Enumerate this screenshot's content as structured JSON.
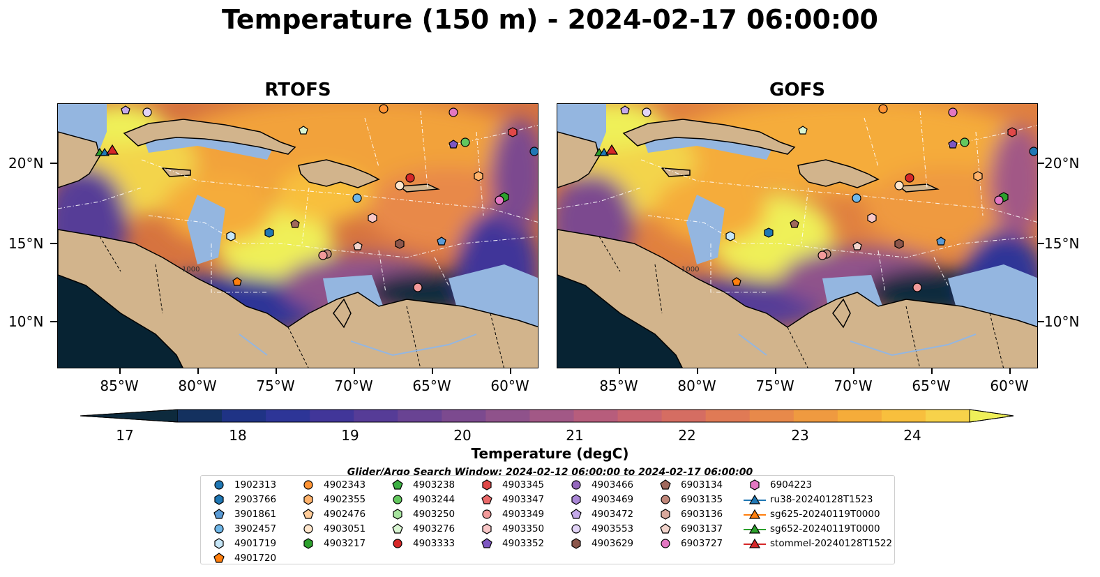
{
  "title": "Temperature (150 m) - 2024-02-17 06:00:00",
  "panels": [
    {
      "title": "RTOFS"
    },
    {
      "title": "GOFS"
    }
  ],
  "axes": {
    "lon_ticks": [
      "85°W",
      "80°W",
      "75°W",
      "70°W",
      "65°W",
      "60°W"
    ],
    "lat_ticks": [
      "20°N",
      "15°N",
      "10°N"
    ]
  },
  "contour_label": "1000",
  "colorbar": {
    "label": "Temperature (degC)",
    "ticks": [
      "17",
      "18",
      "19",
      "20",
      "21",
      "22",
      "23",
      "24"
    ],
    "colors": [
      "#0d2a3d",
      "#14315f",
      "#1f3385",
      "#2d3597",
      "#413699",
      "#563c97",
      "#694393",
      "#7c4a8f",
      "#8f528b",
      "#a25886",
      "#b75d7c",
      "#c86470",
      "#d56d62",
      "#e07a55",
      "#e8894a",
      "#ef9a40",
      "#f5ac3a",
      "#f8bf3d",
      "#f7d24a",
      "#eff059"
    ]
  },
  "search_window": "Glider/Argo Search Window: 2024-02-12 06:00:00 to 2024-02-17 06:00:00",
  "legend": {
    "columns": [
      [
        {
          "label": "1902313",
          "marker": "circle",
          "color": "#1f77b4"
        },
        {
          "label": "2903766",
          "marker": "hexagon",
          "color": "#1f77b4"
        },
        {
          "label": "3901861",
          "marker": "pentagon",
          "color": "#5b9bd5"
        },
        {
          "label": "3902457",
          "marker": "circle",
          "color": "#6fb7e9"
        },
        {
          "label": "4901719",
          "marker": "hexagon",
          "color": "#c6e6f7"
        },
        {
          "label": "4901720",
          "marker": "pentagon",
          "color": "#ff7f0e"
        }
      ],
      [
        {
          "label": "4902343",
          "marker": "circle",
          "color": "#ff9333"
        },
        {
          "label": "4902355",
          "marker": "hexagon",
          "color": "#ffb26b"
        },
        {
          "label": "4902476",
          "marker": "pentagon",
          "color": "#ffcc99"
        },
        {
          "label": "4903051",
          "marker": "circle",
          "color": "#ffe6cc"
        },
        {
          "label": "4903217",
          "marker": "hexagon",
          "color": "#2ca02c"
        }
      ],
      [
        {
          "label": "4903238",
          "marker": "pentagon",
          "color": "#3cb043"
        },
        {
          "label": "4903244",
          "marker": "circle",
          "color": "#63c75e"
        },
        {
          "label": "4903250",
          "marker": "hexagon",
          "color": "#a6e39e"
        },
        {
          "label": "4903276",
          "marker": "pentagon",
          "color": "#d9f5d2"
        },
        {
          "label": "4903333",
          "marker": "circle",
          "color": "#d62728"
        }
      ],
      [
        {
          "label": "4903345",
          "marker": "hexagon",
          "color": "#e04848"
        },
        {
          "label": "4903347",
          "marker": "pentagon",
          "color": "#ea6a6a"
        },
        {
          "label": "4903349",
          "marker": "circle",
          "color": "#f29a9a"
        },
        {
          "label": "4903350",
          "marker": "hexagon",
          "color": "#f9c7c7"
        },
        {
          "label": "4903352",
          "marker": "pentagon",
          "color": "#7e57c2"
        }
      ],
      [
        {
          "label": "4903466",
          "marker": "circle",
          "color": "#9467bd"
        },
        {
          "label": "4903469",
          "marker": "hexagon",
          "color": "#aa87d6"
        },
        {
          "label": "4903472",
          "marker": "pentagon",
          "color": "#c5a9ea"
        },
        {
          "label": "4903553",
          "marker": "circle",
          "color": "#e2d4f7"
        },
        {
          "label": "4903629",
          "marker": "hexagon",
          "color": "#8c564b"
        }
      ],
      [
        {
          "label": "6903134",
          "marker": "pentagon",
          "color": "#a0685c"
        },
        {
          "label": "6903135",
          "marker": "circle",
          "color": "#c0877a"
        },
        {
          "label": "6903136",
          "marker": "hexagon",
          "color": "#d9a89c"
        },
        {
          "label": "6903137",
          "marker": "pentagon",
          "color": "#f2d4cc"
        },
        {
          "label": "6903727",
          "marker": "circle",
          "color": "#e377c2"
        }
      ],
      [
        {
          "label": "6904223",
          "marker": "hexagon",
          "color": "#e377c2"
        },
        {
          "label": "ru38-20240128T1523",
          "marker": "triangle-line",
          "color": "#1f77b4"
        },
        {
          "label": "sg625-20240119T0000",
          "marker": "triangle-line",
          "color": "#ff7f0e"
        },
        {
          "label": "sg652-20240119T0000",
          "marker": "triangle-line",
          "color": "#2ca02c"
        },
        {
          "label": "stommel-20240128T1522",
          "marker": "triangle-line",
          "color": "#d62728"
        }
      ]
    ]
  },
  "colors": {
    "land": "#d2b48c",
    "shelf": "#94b6e0",
    "deep_pacific": "#072333",
    "warm": "#eff059",
    "cool": "#2d3597"
  }
}
